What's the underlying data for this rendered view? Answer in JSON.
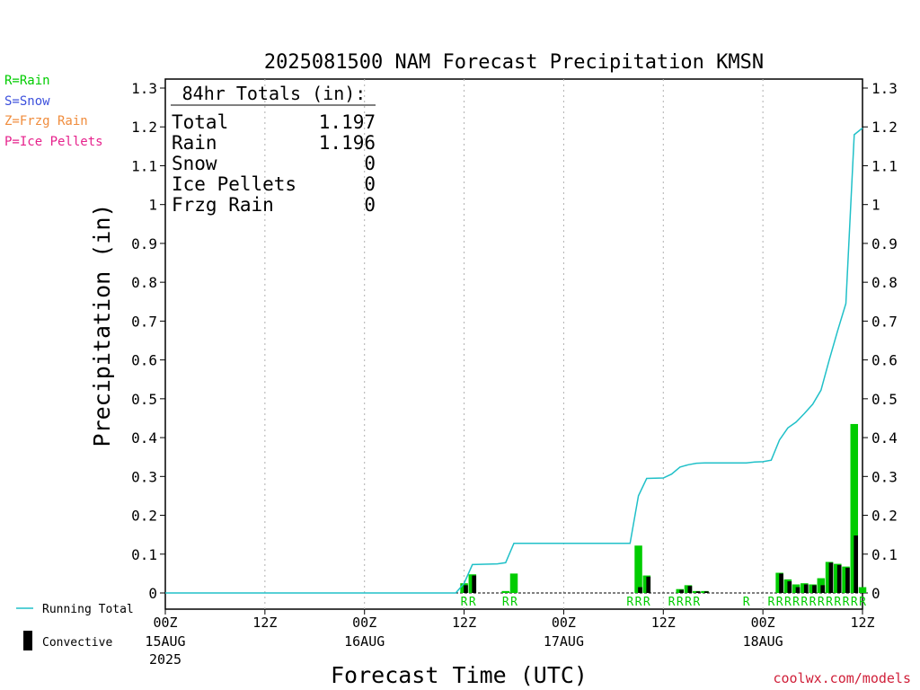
{
  "legend": {
    "items": [
      {
        "label": "R=Rain",
        "color": "#00cc00"
      },
      {
        "label": "S=Snow",
        "color": "#3c50dc"
      },
      {
        "label": "Z=Frzg Rain",
        "color": "#f08c3c"
      },
      {
        "label": "P=Ice Pellets",
        "color": "#e6228c"
      }
    ],
    "running_total_label": "Running Total",
    "convective_label": "Convective"
  },
  "credit": "coolwx.com/models",
  "totals": {
    "title": "84hr Totals (in):",
    "rows": [
      {
        "label": "Total",
        "value": "1.197"
      },
      {
        "label": "Rain",
        "value": "1.196"
      },
      {
        "label": "Snow",
        "value": "0"
      },
      {
        "label": "Ice Pellets",
        "value": "0"
      },
      {
        "label": "Frzg Rain",
        "value": "0"
      }
    ]
  },
  "colors": {
    "rain_bar": "#00cc00",
    "convective_bar": "#000000",
    "running_total_line": "#20c0c8",
    "grid": "#b0b0b0",
    "axis": "#000000"
  },
  "chart_data": {
    "type": "bar",
    "title": "2025081500 NAM Forecast Precipitation KMSN",
    "xlabel": "Forecast Time (UTC)",
    "ylabel": "Precipitation (in)",
    "ylim": [
      0,
      1.3
    ],
    "yticks": [
      0,
      0.1,
      0.2,
      0.3,
      0.4,
      0.5,
      0.6,
      0.7,
      0.8,
      0.9,
      1,
      1.1,
      1.2,
      1.3
    ],
    "xlim_hours": [
      0,
      84
    ],
    "xticks": [
      {
        "h": 0,
        "label": "00Z",
        "sub": "15AUG",
        "sub2": "2025"
      },
      {
        "h": 12,
        "label": "12Z"
      },
      {
        "h": 24,
        "label": "00Z",
        "sub": "16AUG"
      },
      {
        "h": 36,
        "label": "12Z"
      },
      {
        "h": 48,
        "label": "00Z",
        "sub": "17AUG"
      },
      {
        "h": 60,
        "label": "12Z"
      },
      {
        "h": 72,
        "label": "00Z",
        "sub": "18AUG"
      },
      {
        "h": 84,
        "label": "12Z"
      }
    ],
    "grid": "vertical dotted at 12h ticks",
    "precip_bars": [
      {
        "h": 36,
        "rain": 0.025,
        "convective": 0.02
      },
      {
        "h": 37,
        "rain": 0.048,
        "convective": 0.045
      },
      {
        "h": 41,
        "rain": 0.005,
        "convective": 0
      },
      {
        "h": 42,
        "rain": 0.05,
        "convective": 0
      },
      {
        "h": 57,
        "rain": 0.122,
        "convective": 0.015
      },
      {
        "h": 58,
        "rain": 0.045,
        "convective": 0.042
      },
      {
        "h": 62,
        "rain": 0.01,
        "convective": 0.008
      },
      {
        "h": 63,
        "rain": 0.02,
        "convective": 0.018
      },
      {
        "h": 64,
        "rain": 0.005,
        "convective": 0.004
      },
      {
        "h": 65,
        "rain": 0.005,
        "convective": 0.004
      },
      {
        "h": 74,
        "rain": 0.052,
        "convective": 0.05
      },
      {
        "h": 75,
        "rain": 0.035,
        "convective": 0.03
      },
      {
        "h": 76,
        "rain": 0.022,
        "convective": 0.015
      },
      {
        "h": 77,
        "rain": 0.025,
        "convective": 0.022
      },
      {
        "h": 78,
        "rain": 0.022,
        "convective": 0.02
      },
      {
        "h": 79,
        "rain": 0.038,
        "convective": 0.02
      },
      {
        "h": 80,
        "rain": 0.08,
        "convective": 0.078
      },
      {
        "h": 81,
        "rain": 0.075,
        "convective": 0.072
      },
      {
        "h": 82,
        "rain": 0.068,
        "convective": 0.065
      },
      {
        "h": 83,
        "rain": 0.435,
        "convective": 0.148
      },
      {
        "h": 84,
        "rain": 0.015,
        "convective": 0
      }
    ],
    "precip_type_labels": [
      {
        "h": 36,
        "t": "R"
      },
      {
        "h": 37,
        "t": "R"
      },
      {
        "h": 41,
        "t": "R"
      },
      {
        "h": 42,
        "t": "R"
      },
      {
        "h": 56,
        "t": "R"
      },
      {
        "h": 57,
        "t": "R"
      },
      {
        "h": 58,
        "t": "R"
      },
      {
        "h": 61,
        "t": "R"
      },
      {
        "h": 62,
        "t": "R"
      },
      {
        "h": 63,
        "t": "R"
      },
      {
        "h": 64,
        "t": "R"
      },
      {
        "h": 70,
        "t": "R"
      },
      {
        "h": 73,
        "t": "R"
      },
      {
        "h": 74,
        "t": "R"
      },
      {
        "h": 75,
        "t": "R"
      },
      {
        "h": 76,
        "t": "R"
      },
      {
        "h": 77,
        "t": "R"
      },
      {
        "h": 78,
        "t": "R"
      },
      {
        "h": 79,
        "t": "R"
      },
      {
        "h": 80,
        "t": "R"
      },
      {
        "h": 81,
        "t": "R"
      },
      {
        "h": 82,
        "t": "R"
      },
      {
        "h": 83,
        "t": "R"
      },
      {
        "h": 84,
        "t": "R"
      }
    ],
    "running_total": [
      {
        "h": 0,
        "v": 0
      },
      {
        "h": 35,
        "v": 0
      },
      {
        "h": 36,
        "v": 0.025
      },
      {
        "h": 37,
        "v": 0.073
      },
      {
        "h": 40,
        "v": 0.075
      },
      {
        "h": 41,
        "v": 0.078
      },
      {
        "h": 42,
        "v": 0.128
      },
      {
        "h": 56,
        "v": 0.128
      },
      {
        "h": 57,
        "v": 0.25
      },
      {
        "h": 58,
        "v": 0.295
      },
      {
        "h": 60,
        "v": 0.296
      },
      {
        "h": 61,
        "v": 0.306
      },
      {
        "h": 62,
        "v": 0.324
      },
      {
        "h": 63,
        "v": 0.33
      },
      {
        "h": 64,
        "v": 0.334
      },
      {
        "h": 65,
        "v": 0.335
      },
      {
        "h": 70,
        "v": 0.335
      },
      {
        "h": 71,
        "v": 0.337
      },
      {
        "h": 72,
        "v": 0.338
      },
      {
        "h": 73,
        "v": 0.342
      },
      {
        "h": 74,
        "v": 0.394
      },
      {
        "h": 75,
        "v": 0.425
      },
      {
        "h": 76,
        "v": 0.44
      },
      {
        "h": 77,
        "v": 0.462
      },
      {
        "h": 78,
        "v": 0.486
      },
      {
        "h": 79,
        "v": 0.522
      },
      {
        "h": 80,
        "v": 0.6
      },
      {
        "h": 81,
        "v": 0.675
      },
      {
        "h": 82,
        "v": 0.745
      },
      {
        "h": 83,
        "v": 1.18
      },
      {
        "h": 84,
        "v": 1.197
      }
    ]
  }
}
